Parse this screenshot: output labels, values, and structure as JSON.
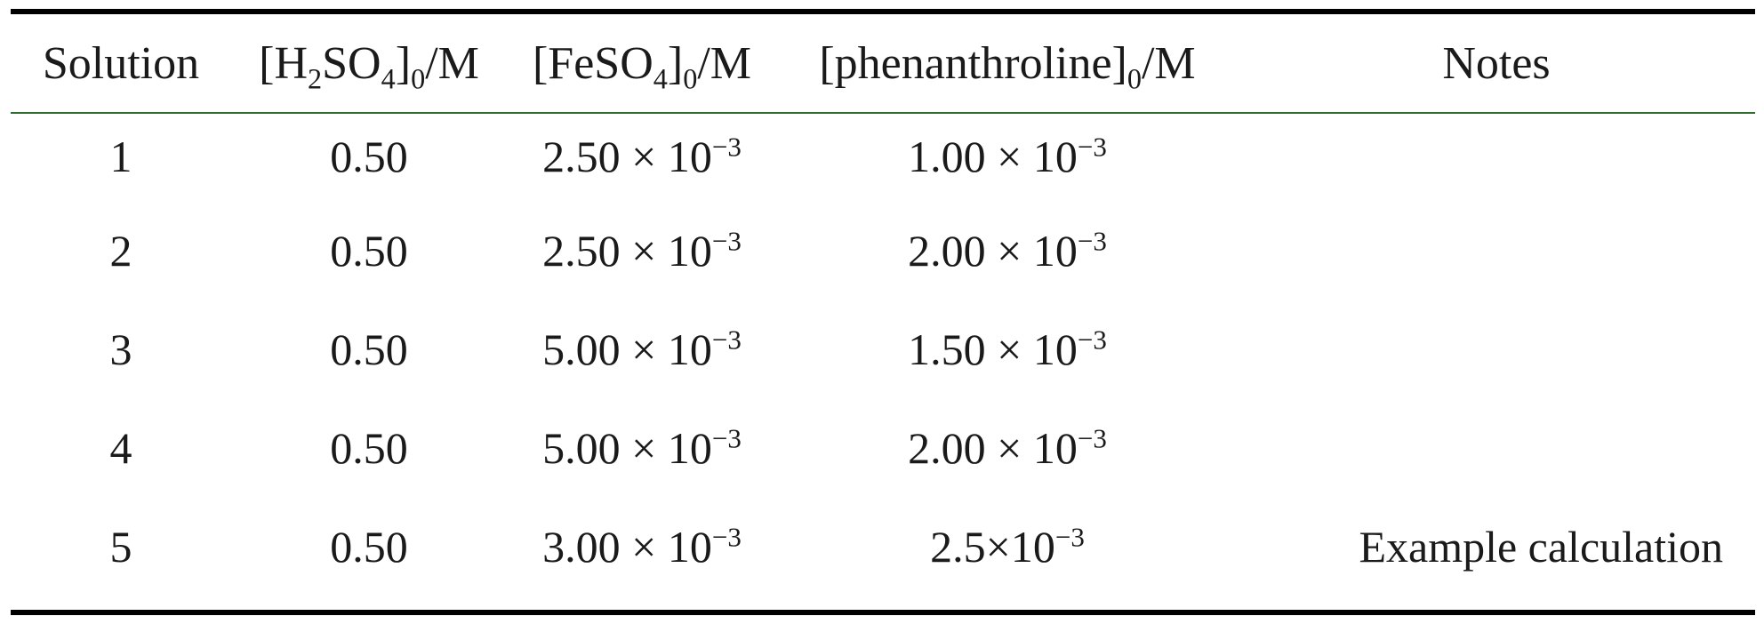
{
  "table": {
    "headers": [
      {
        "main": "Solution"
      },
      {
        "open": "[H",
        "sub1": "2",
        "mid": "SO",
        "sub2": "4",
        "close": "]",
        "sub3": "0",
        "unit": "/M"
      },
      {
        "open": "[FeSO",
        "sub1": "4",
        "close": "]",
        "sub2": "0",
        "unit": "/M"
      },
      {
        "open": "[phenanthroline]",
        "sub1": "0",
        "unit": "/M"
      },
      {
        "main": "Notes"
      }
    ],
    "rows": [
      {
        "solution": "1",
        "h2so4": "0.50",
        "feso4_mant": "2.50 × 10",
        "feso4_exp": "−3",
        "phen_mant": "1.00 × 10",
        "phen_exp": "−3",
        "notes": ""
      },
      {
        "solution": "2",
        "h2so4": "0.50",
        "feso4_mant": "2.50 × 10",
        "feso4_exp": "−3",
        "phen_mant": "2.00 × 10",
        "phen_exp": "−3",
        "notes": ""
      },
      {
        "solution": "3",
        "h2so4": "0.50",
        "feso4_mant": "5.00 × 10",
        "feso4_exp": "−3",
        "phen_mant": "1.50 × 10",
        "phen_exp": "−3",
        "notes": ""
      },
      {
        "solution": "4",
        "h2so4": "0.50",
        "feso4_mant": "5.00 × 10",
        "feso4_exp": "−3",
        "phen_mant": "2.00 × 10",
        "phen_exp": "−3",
        "notes": ""
      },
      {
        "solution": "5",
        "h2so4": "0.50",
        "feso4_mant": "3.00 × 10",
        "feso4_exp": "−3",
        "phen_mant": "2.5×10",
        "phen_exp": "−3",
        "notes": "Example calculation"
      }
    ]
  }
}
